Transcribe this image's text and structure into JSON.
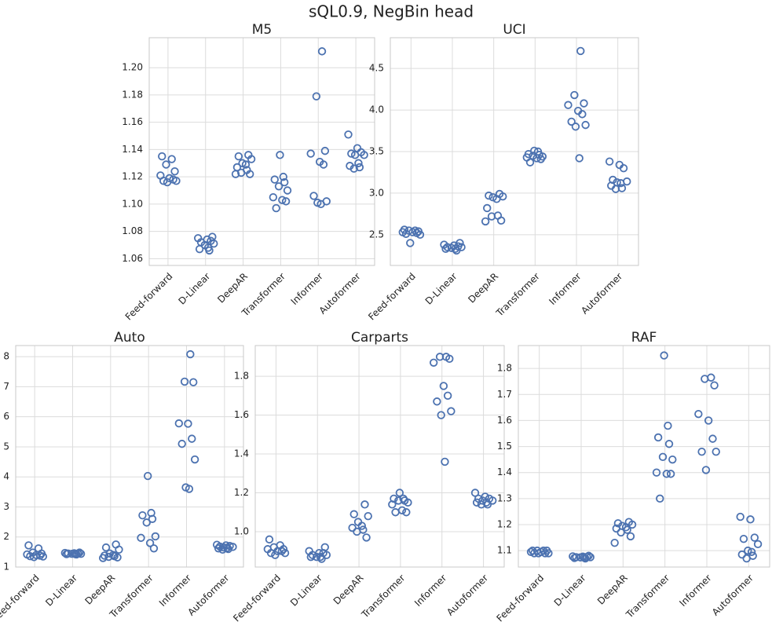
{
  "title": "sQL0.9, NegBin head",
  "chart_data": [
    {
      "type": "strip",
      "title": "M5",
      "color": "#4c72b0",
      "grid": true,
      "categories": [
        "Feed-forward",
        "D-Linear",
        "DeepAR",
        "Transformer",
        "Informer",
        "Autoformer"
      ],
      "values": [
        [
          1.135,
          1.133,
          1.129,
          1.124,
          1.121,
          1.119,
          1.118,
          1.117,
          1.117,
          1.116
        ],
        [
          1.076,
          1.075,
          1.074,
          1.073,
          1.072,
          1.071,
          1.07,
          1.068,
          1.067,
          1.066
        ],
        [
          1.136,
          1.135,
          1.133,
          1.13,
          1.129,
          1.127,
          1.125,
          1.123,
          1.122,
          1.122
        ],
        [
          1.136,
          1.12,
          1.118,
          1.116,
          1.113,
          1.11,
          1.105,
          1.103,
          1.102,
          1.097
        ],
        [
          1.212,
          1.179,
          1.139,
          1.137,
          1.131,
          1.129,
          1.106,
          1.102,
          1.101,
          1.1
        ],
        [
          1.151,
          1.141,
          1.138,
          1.137,
          1.136,
          1.136,
          1.13,
          1.128,
          1.127,
          1.126
        ]
      ],
      "ylim": [
        1.055,
        1.222
      ],
      "yticks": [
        1.06,
        1.08,
        {
          "value": 1.1,
          "label": "1.10"
        },
        1.12,
        1.14,
        1.16,
        1.18,
        {
          "value": 1.2,
          "label": "1.20"
        }
      ]
    },
    {
      "type": "strip",
      "title": "UCI",
      "color": "#4c72b0",
      "grid": true,
      "categories": [
        "Feed-forward",
        "D-Linear",
        "DeepAR",
        "Transformer",
        "Informer",
        "Autoformer"
      ],
      "values": [
        [
          2.56,
          2.55,
          2.55,
          2.54,
          2.53,
          2.53,
          2.52,
          2.51,
          2.5,
          2.4
        ],
        [
          2.4,
          2.38,
          2.37,
          2.36,
          2.35,
          2.35,
          2.34,
          2.33,
          2.33,
          2.31
        ],
        [
          2.99,
          2.97,
          2.96,
          2.95,
          2.93,
          2.82,
          2.73,
          2.72,
          2.67,
          2.66
        ],
        [
          3.51,
          3.5,
          3.47,
          3.46,
          3.45,
          3.44,
          3.43,
          3.42,
          3.41,
          3.37
        ],
        [
          4.71,
          4.18,
          4.08,
          4.06,
          3.99,
          3.95,
          3.86,
          3.82,
          3.8,
          3.42
        ],
        [
          3.38,
          3.34,
          3.3,
          3.16,
          3.14,
          3.13,
          3.12,
          3.09,
          3.06,
          3.05
        ]
      ],
      "ylim": [
        2.13,
        4.87
      ],
      "yticks": [
        2.5,
        {
          "value": 3,
          "label": "3.0"
        },
        3.5,
        {
          "value": 4,
          "label": "4.0"
        },
        4.5
      ]
    },
    {
      "type": "strip",
      "title": "Auto",
      "color": "#4c72b0",
      "grid": true,
      "categories": [
        "Feed-forward",
        "D-Linear",
        "DeepAR",
        "Transformer",
        "Informer",
        "Autoformer"
      ],
      "values": [
        [
          1.72,
          1.62,
          1.48,
          1.45,
          1.42,
          1.4,
          1.38,
          1.36,
          1.35,
          1.33
        ],
        [
          1.48,
          1.47,
          1.46,
          1.45,
          1.45,
          1.44,
          1.44,
          1.43,
          1.43,
          1.42
        ],
        [
          1.75,
          1.65,
          1.58,
          1.45,
          1.4,
          1.38,
          1.36,
          1.34,
          1.32,
          1.3
        ],
        [
          4.03,
          2.8,
          2.72,
          2.6,
          2.48,
          2.02,
          1.97,
          1.8,
          1.62
        ],
        [
          8.08,
          7.17,
          7.15,
          5.78,
          5.77,
          5.27,
          5.1,
          4.58,
          3.65,
          3.6
        ],
        [
          1.74,
          1.72,
          1.7,
          1.68,
          1.67,
          1.65,
          1.64,
          1.62,
          1.6,
          1.58
        ]
      ],
      "ylim": [
        1,
        8.37
      ],
      "yticks": [
        1,
        2,
        3,
        4,
        5,
        6,
        7,
        8
      ]
    },
    {
      "type": "strip",
      "title": "Carparts",
      "color": "#4c72b0",
      "grid": true,
      "categories": [
        "Feed-forward",
        "D-Linear",
        "DeepAR",
        "Transformer",
        "Informer",
        "Autoformer"
      ],
      "values": [
        [
          0.96,
          0.93,
          0.92,
          0.91,
          0.91,
          0.9,
          0.9,
          0.89,
          0.89,
          0.88
        ],
        [
          0.92,
          0.9,
          0.89,
          0.89,
          0.88,
          0.88,
          0.87,
          0.87,
          0.87,
          0.86
        ],
        [
          1.14,
          1.09,
          1.08,
          1.05,
          1.03,
          1.02,
          1.01,
          1.0,
          0.97
        ],
        [
          1.2,
          1.17,
          1.17,
          1.16,
          1.16,
          1.15,
          1.14,
          1.11,
          1.1,
          1.1
        ],
        [
          1.9,
          1.9,
          1.89,
          1.87,
          1.75,
          1.7,
          1.67,
          1.62,
          1.6,
          1.36
        ],
        [
          1.2,
          1.18,
          1.17,
          1.17,
          1.16,
          1.16,
          1.15,
          1.15,
          1.14,
          1.14
        ]
      ],
      "ylim": [
        0.818,
        1.958
      ],
      "yticks": [
        {
          "value": 1,
          "label": "1.0"
        },
        1.2,
        1.4,
        1.6,
        1.8
      ]
    },
    {
      "type": "strip",
      "title": "RAF",
      "color": "#4c72b0",
      "grid": true,
      "categories": [
        "Feed-forward",
        "D-Linear",
        "DeepAR",
        "Transformer",
        "Informer",
        "Autoformer"
      ],
      "values": [
        [
          1.1,
          1.1,
          1.1,
          1.1,
          1.095,
          1.095,
          1.09,
          1.09,
          1.09,
          1.09
        ],
        [
          1.08,
          1.078,
          1.077,
          1.076,
          1.075,
          1.075,
          1.074,
          1.073,
          1.072,
          1.07
        ],
        [
          1.21,
          1.205,
          1.2,
          1.195,
          1.19,
          1.185,
          1.18,
          1.17,
          1.155,
          1.13
        ],
        [
          1.85,
          1.58,
          1.535,
          1.51,
          1.46,
          1.45,
          1.4,
          1.395,
          1.395,
          1.3
        ],
        [
          1.765,
          1.76,
          1.735,
          1.625,
          1.6,
          1.53,
          1.48,
          1.48,
          1.41
        ],
        [
          1.23,
          1.22,
          1.15,
          1.145,
          1.125,
          1.1,
          1.095,
          1.085,
          1.08,
          1.07
        ]
      ],
      "ylim": [
        1.037,
        1.888
      ],
      "yticks": [
        1.1,
        1.2,
        1.3,
        1.4,
        1.5,
        1.6,
        1.7,
        1.8
      ]
    }
  ]
}
